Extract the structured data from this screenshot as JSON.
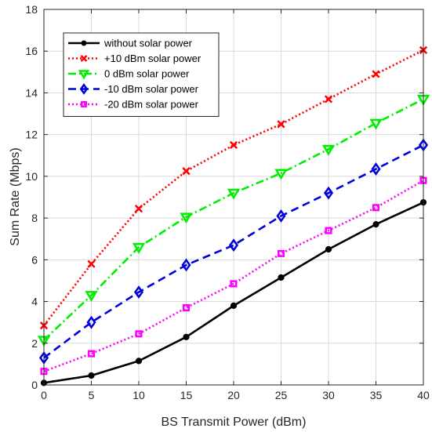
{
  "chart_data": {
    "type": "line",
    "xlabel": "BS Transmit Power (dBm)",
    "ylabel": "Sum Rate (Mbps)",
    "xlim": [
      0,
      40
    ],
    "ylim": [
      0,
      18
    ],
    "x_ticks": [
      "0",
      "5",
      "10",
      "15",
      "20",
      "25",
      "30",
      "35",
      "40"
    ],
    "y_ticks": [
      "0",
      "2",
      "4",
      "6",
      "8",
      "10",
      "12",
      "14",
      "16",
      "18"
    ],
    "grid": true,
    "legend_position": "top-left",
    "x": [
      0,
      5,
      10,
      15,
      20,
      25,
      30,
      35,
      40
    ],
    "series": [
      {
        "name": "without solar power",
        "values": [
          0.1,
          0.45,
          1.15,
          2.3,
          3.8,
          5.15,
          6.5,
          7.7,
          8.75
        ],
        "color": "#000000",
        "dash": "solid",
        "marker": "circle"
      },
      {
        "name": "+10 dBm solar power",
        "values": [
          2.85,
          5.8,
          8.45,
          10.25,
          11.5,
          12.5,
          13.7,
          14.9,
          16.05
        ],
        "color": "#ff0000",
        "dash": "dotted",
        "marker": "x"
      },
      {
        "name": "0 dBm solar power",
        "values": [
          2.15,
          4.3,
          6.6,
          8.05,
          9.2,
          10.15,
          11.3,
          12.55,
          13.7
        ],
        "color": "#00ee00",
        "dash": "dashdot",
        "marker": "triangle-down"
      },
      {
        "name": "-10 dBm solar power",
        "values": [
          1.3,
          3.0,
          4.45,
          5.75,
          6.7,
          8.1,
          9.2,
          10.35,
          11.5
        ],
        "color": "#0000dd",
        "dash": "dashed",
        "marker": "diamond"
      },
      {
        "name": "-20 dBm solar power",
        "values": [
          0.65,
          1.5,
          2.45,
          3.7,
          4.85,
          6.3,
          7.4,
          8.5,
          9.8
        ],
        "color": "#ff00ff",
        "dash": "dotted",
        "marker": "square"
      }
    ]
  }
}
